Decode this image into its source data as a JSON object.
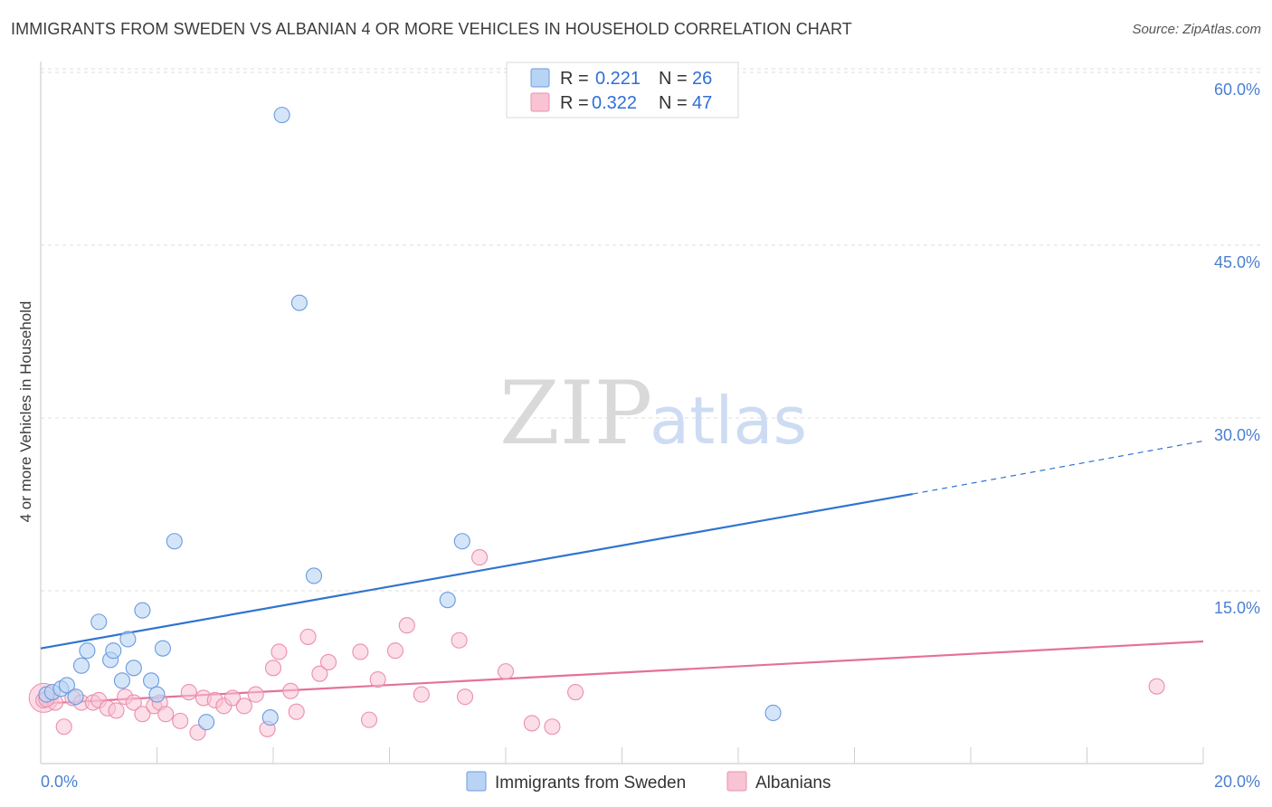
{
  "title": "IMMIGRANTS FROM SWEDEN VS ALBANIAN 4 OR MORE VEHICLES IN HOUSEHOLD CORRELATION CHART",
  "source": "Source: ZipAtlas.com",
  "watermark": {
    "zip": "ZIP",
    "atlas": "atlas"
  },
  "colors": {
    "sweden_fill": "#b9d3f4",
    "sweden_stroke": "#6a9be0",
    "sweden_line": "#2f74d0",
    "albanian_fill": "#f8c3d3",
    "albanian_stroke": "#ec8fac",
    "albanian_line": "#e4719a",
    "grid": "#dddddd",
    "tick_text": "#4a7fd1"
  },
  "legend": {
    "r_label": "R =",
    "n_label": "N =",
    "rows": [
      {
        "r": "0.221",
        "n": "26"
      },
      {
        "r": "0.322",
        "n": "47"
      }
    ]
  },
  "chart_data": {
    "type": "scatter",
    "title": "IMMIGRANTS FROM SWEDEN VS ALBANIAN 4 OR MORE VEHICLES IN HOUSEHOLD CORRELATION CHART",
    "xlabel": "",
    "ylabel": "4 or more Vehicles in Household",
    "xlim": [
      0,
      20
    ],
    "ylim": [
      0,
      63
    ],
    "x_tick_labels": [
      "0.0%",
      "20.0%"
    ],
    "y_ticks": [
      15,
      30,
      45,
      60
    ],
    "y_tick_labels": [
      "15.0%",
      "30.0%",
      "45.0%",
      "60.0%"
    ],
    "legend_position": "top-center",
    "series": [
      {
        "name": "Immigrants from Sweden",
        "r": 0.221,
        "n": 26,
        "points": [
          [
            0.1,
            6.0
          ],
          [
            0.2,
            6.2
          ],
          [
            0.35,
            6.5
          ],
          [
            0.45,
            6.8
          ],
          [
            0.6,
            5.8
          ],
          [
            0.7,
            8.5
          ],
          [
            0.8,
            9.8
          ],
          [
            1.0,
            12.3
          ],
          [
            1.2,
            9.0
          ],
          [
            1.25,
            9.8
          ],
          [
            1.4,
            7.2
          ],
          [
            1.5,
            10.8
          ],
          [
            1.6,
            8.3
          ],
          [
            1.75,
            13.3
          ],
          [
            1.9,
            7.2
          ],
          [
            2.0,
            6.0
          ],
          [
            2.1,
            10.0
          ],
          [
            2.3,
            19.3
          ],
          [
            2.85,
            3.6
          ],
          [
            3.95,
            4.0
          ],
          [
            4.15,
            56.3
          ],
          [
            4.45,
            40.0
          ],
          [
            4.7,
            16.3
          ],
          [
            7.0,
            14.2
          ],
          [
            7.25,
            19.3
          ],
          [
            12.6,
            4.4
          ]
        ],
        "trend": {
          "x0": 0,
          "y0": 10.0,
          "x1": 15.0,
          "y1": 23.4,
          "dash_to_x": 20.0,
          "dash_to_y": 28.0
        }
      },
      {
        "name": "Albanians",
        "r": 0.322,
        "n": 47,
        "points": [
          [
            0.05,
            5.5
          ],
          [
            0.25,
            5.3
          ],
          [
            0.4,
            3.2
          ],
          [
            0.55,
            5.7
          ],
          [
            0.7,
            5.3
          ],
          [
            0.9,
            5.3
          ],
          [
            1.0,
            5.5
          ],
          [
            1.15,
            4.8
          ],
          [
            1.3,
            4.6
          ],
          [
            1.45,
            5.8
          ],
          [
            1.6,
            5.3
          ],
          [
            1.75,
            4.3
          ],
          [
            1.95,
            5.0
          ],
          [
            2.05,
            5.3
          ],
          [
            2.15,
            4.3
          ],
          [
            2.4,
            3.7
          ],
          [
            2.55,
            6.2
          ],
          [
            2.7,
            2.7
          ],
          [
            2.8,
            5.7
          ],
          [
            3.0,
            5.5
          ],
          [
            3.15,
            5.0
          ],
          [
            3.3,
            5.7
          ],
          [
            3.5,
            5.0
          ],
          [
            3.7,
            6.0
          ],
          [
            3.9,
            3.0
          ],
          [
            4.0,
            8.3
          ],
          [
            4.1,
            9.7
          ],
          [
            4.3,
            6.3
          ],
          [
            4.4,
            4.5
          ],
          [
            4.6,
            11.0
          ],
          [
            4.8,
            7.8
          ],
          [
            4.95,
            8.8
          ],
          [
            5.5,
            9.7
          ],
          [
            5.65,
            3.8
          ],
          [
            5.8,
            7.3
          ],
          [
            6.1,
            9.8
          ],
          [
            6.3,
            12.0
          ],
          [
            6.55,
            6.0
          ],
          [
            7.2,
            10.7
          ],
          [
            7.3,
            5.8
          ],
          [
            7.55,
            17.9
          ],
          [
            8.0,
            8.0
          ],
          [
            8.45,
            3.5
          ],
          [
            8.8,
            3.2
          ],
          [
            9.2,
            6.2
          ],
          [
            19.2,
            6.7
          ],
          [
            0.1,
            5.6
          ]
        ],
        "trend": {
          "x0": 0,
          "y0": 5.2,
          "x1": 20.0,
          "y1": 10.6
        }
      }
    ]
  }
}
